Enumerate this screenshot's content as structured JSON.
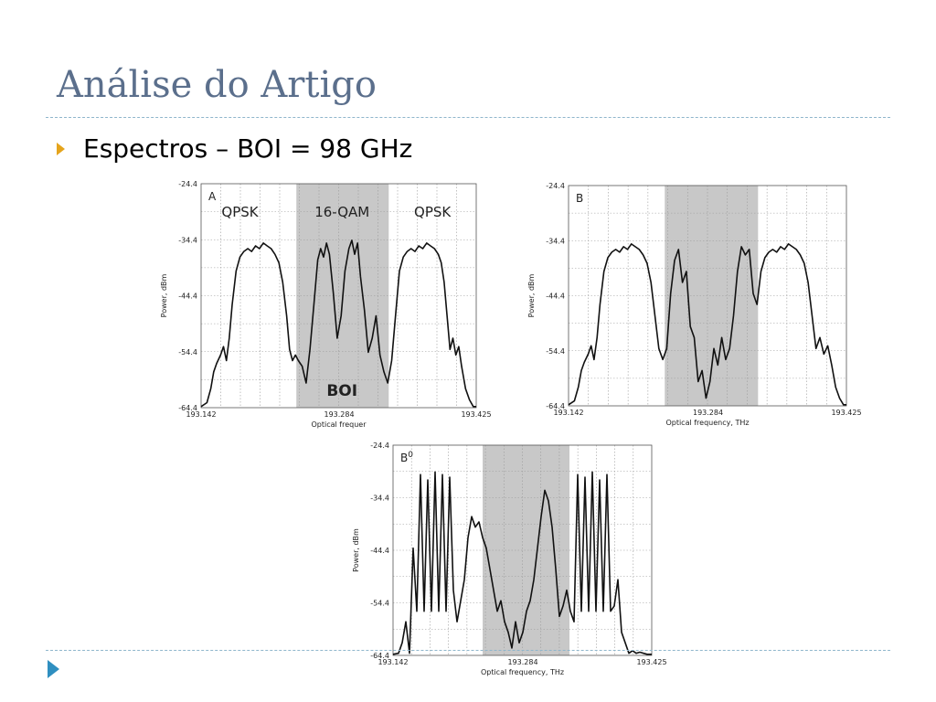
{
  "slide": {
    "title": "Análise do Artigo",
    "bullet": "Espectros – BOI = 98 GHz"
  },
  "chart_data": [
    {
      "type": "line",
      "panel_label": "A",
      "xlabel": "Optical frequer",
      "ylabel": "Power, dBm",
      "x_ticks": [
        "193.142",
        "193.284",
        "193.425"
      ],
      "y_ticks": [
        "-24.4",
        "-34.4",
        "-44.4",
        "-54.4",
        "-64.4"
      ],
      "xlim": [
        193.142,
        193.425
      ],
      "ylim": [
        -64.4,
        -24.4
      ],
      "grid": true,
      "shaded_band": [
        193.24,
        193.335
      ],
      "annotations": [
        "QPSK",
        "16-QAM",
        "QPSK",
        "BOI"
      ],
      "series": [
        {
          "x": [
            193.142,
            193.148,
            193.152,
            193.155,
            193.158,
            193.162,
            193.165,
            193.168,
            193.171,
            193.174,
            193.178,
            193.182,
            193.186,
            193.19,
            193.194,
            193.198,
            193.202,
            193.206,
            193.21,
            193.214,
            193.218,
            193.222,
            193.226,
            193.23,
            193.233,
            193.236,
            193.239,
            193.242,
            193.246,
            193.25,
            193.254,
            193.258,
            193.262,
            193.265,
            193.268,
            193.271,
            193.274,
            193.278,
            193.282,
            193.286,
            193.29,
            193.294,
            193.297,
            193.3,
            193.303,
            193.306,
            193.31,
            193.314,
            193.318,
            193.322,
            193.326,
            193.33,
            193.334,
            193.338,
            193.342,
            193.346,
            193.35,
            193.354,
            193.358,
            193.362,
            193.366,
            193.37,
            193.374,
            193.378,
            193.382,
            193.386,
            193.389,
            193.392,
            193.395,
            193.398,
            193.401,
            193.404,
            193.407,
            193.41,
            193.414,
            193.418,
            193.422,
            193.425
          ],
          "y": [
            -64.2,
            -63.5,
            -61,
            -58,
            -56.5,
            -55,
            -53.5,
            -56,
            -52,
            -46,
            -40,
            -37.5,
            -36.5,
            -36,
            -36.5,
            -35.5,
            -36,
            -35,
            -35.5,
            -36,
            -37,
            -38.5,
            -42,
            -48,
            -54,
            -56,
            -55,
            -56,
            -57,
            -60,
            -54,
            -46,
            -38,
            -36,
            -37.5,
            -35,
            -37,
            -44,
            -52,
            -48,
            -40,
            -36,
            -34.5,
            -37,
            -35,
            -41,
            -47,
            -54.5,
            -52,
            -48,
            -55,
            -58,
            -60,
            -56,
            -48,
            -40,
            -37.5,
            -36.5,
            -36,
            -36.5,
            -35.5,
            -36,
            -35,
            -35.5,
            -36,
            -37,
            -38.5,
            -42,
            -48,
            -54,
            -52,
            -55,
            -53.5,
            -57,
            -61,
            -63,
            -64.2,
            -64.2
          ]
        }
      ]
    },
    {
      "type": "line",
      "panel_label": "B",
      "xlabel": "Optical frequency, THz",
      "ylabel": "Power, dBm",
      "x_ticks": [
        "193.142",
        "193.284",
        "193.425"
      ],
      "y_ticks": [
        "-24.4",
        "-34.4",
        "-44.4",
        "-54.4",
        "-64.4"
      ],
      "xlim": [
        193.142,
        193.425
      ],
      "ylim": [
        -64.4,
        -24.4
      ],
      "grid": true,
      "shaded_band": [
        193.24,
        193.335
      ],
      "series": [
        {
          "x": [
            193.142,
            193.148,
            193.152,
            193.155,
            193.158,
            193.162,
            193.165,
            193.168,
            193.171,
            193.174,
            193.178,
            193.182,
            193.186,
            193.19,
            193.194,
            193.198,
            193.202,
            193.206,
            193.21,
            193.214,
            193.218,
            193.222,
            193.226,
            193.23,
            193.234,
            193.238,
            193.242,
            193.246,
            193.25,
            193.254,
            193.258,
            193.262,
            193.266,
            193.27,
            193.274,
            193.278,
            193.282,
            193.286,
            193.29,
            193.294,
            193.298,
            193.302,
            193.306,
            193.31,
            193.314,
            193.318,
            193.322,
            193.326,
            193.33,
            193.334,
            193.338,
            193.342,
            193.346,
            193.35,
            193.354,
            193.358,
            193.362,
            193.366,
            193.37,
            193.374,
            193.378,
            193.382,
            193.386,
            193.39,
            193.394,
            193.398,
            193.402,
            193.406,
            193.41,
            193.414,
            193.418,
            193.422,
            193.425
          ],
          "y": [
            -64.2,
            -63.5,
            -61,
            -58,
            -56.5,
            -55,
            -53.5,
            -56,
            -52,
            -46,
            -40,
            -37.5,
            -36.5,
            -36,
            -36.5,
            -35.5,
            -36,
            -35,
            -35.5,
            -36,
            -37,
            -38.5,
            -42,
            -48,
            -54,
            -56,
            -54,
            -44,
            -38,
            -36,
            -42,
            -40,
            -50,
            -52,
            -60,
            -58,
            -63,
            -60,
            -54,
            -57,
            -52,
            -56,
            -54,
            -48,
            -40,
            -35.5,
            -37,
            -36,
            -44,
            -46,
            -40,
            -37.5,
            -36.5,
            -36,
            -36.5,
            -35.5,
            -36,
            -35,
            -35.5,
            -36,
            -37,
            -38.5,
            -42,
            -48,
            -54,
            -52,
            -55,
            -53.5,
            -57,
            -61,
            -63,
            -64.2,
            -64.2
          ]
        }
      ]
    },
    {
      "type": "line",
      "panel_label": "B",
      "panel_superscript": "0",
      "xlabel": "Optical frequency, THz",
      "ylabel": "Power, dBm",
      "x_ticks": [
        "193.142",
        "193.284",
        "193.425"
      ],
      "y_ticks": [
        "-24.4",
        "-34.4",
        "-44.4",
        "-54.4",
        "-64.4"
      ],
      "xlim": [
        193.142,
        193.425
      ],
      "ylim": [
        -64.4,
        -24.4
      ],
      "grid": true,
      "shaded_band": [
        193.24,
        193.335
      ],
      "series": [
        {
          "x": [
            193.142,
            193.148,
            193.152,
            193.156,
            193.16,
            193.164,
            193.168,
            193.172,
            193.176,
            193.18,
            193.184,
            193.188,
            193.192,
            193.196,
            193.2,
            193.204,
            193.208,
            193.212,
            193.216,
            193.22,
            193.224,
            193.228,
            193.232,
            193.236,
            193.24,
            193.244,
            193.248,
            193.252,
            193.256,
            193.26,
            193.264,
            193.268,
            193.272,
            193.276,
            193.28,
            193.284,
            193.288,
            193.292,
            193.296,
            193.3,
            193.304,
            193.308,
            193.312,
            193.316,
            193.32,
            193.324,
            193.328,
            193.332,
            193.336,
            193.34,
            193.344,
            193.348,
            193.352,
            193.356,
            193.36,
            193.364,
            193.368,
            193.372,
            193.376,
            193.38,
            193.384,
            193.388,
            193.392,
            193.396,
            193.4,
            193.404,
            193.408,
            193.412,
            193.416,
            193.42,
            193.425
          ],
          "y": [
            -64.2,
            -64,
            -62,
            -58,
            -64,
            -44,
            -56,
            -30,
            -56,
            -31,
            -56,
            -29.5,
            -56,
            -30,
            -56,
            -30.5,
            -52,
            -58,
            -54,
            -50,
            -42,
            -38,
            -40,
            -39,
            -42,
            -44,
            -48,
            -52,
            -56,
            -54,
            -58,
            -60,
            -63,
            -58,
            -62,
            -60,
            -56,
            -54,
            -50,
            -44,
            -38,
            -33,
            -35,
            -40,
            -48,
            -57,
            -55,
            -52,
            -56,
            -58,
            -30,
            -56,
            -30.5,
            -56,
            -29.5,
            -56,
            -31,
            -56,
            -30,
            -56,
            -55,
            -50,
            -60,
            -62,
            -64,
            -63.5,
            -64,
            -63.8,
            -64,
            -64.2,
            -64.2
          ]
        }
      ]
    }
  ]
}
